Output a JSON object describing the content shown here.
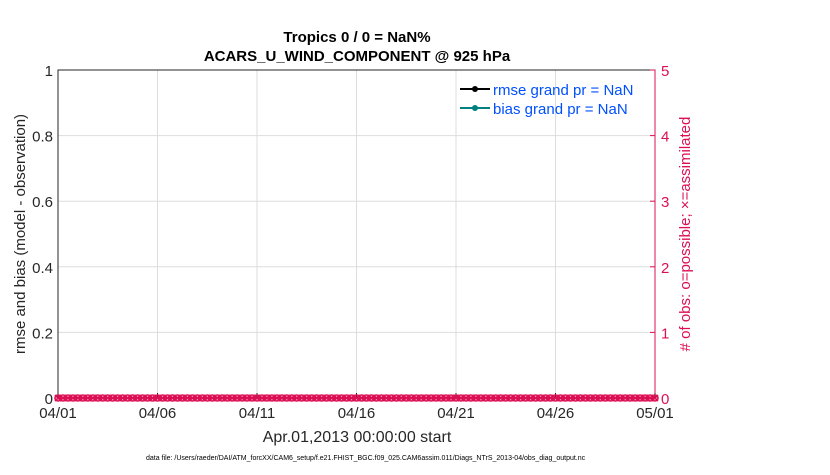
{
  "chart_data": {
    "type": "line",
    "title_line1": "Tropics 0 / 0 = NaN%",
    "title_line2": "ACARS_U_WIND_COMPONENT @ 925 hPa",
    "xlabel": "Apr.01,2013 00:00:00 start",
    "ylabel_left": "rmse and bias (model - observation)",
    "ylabel_right": "# of obs: o=possible; ×=assimilated",
    "x_ticks": [
      "04/01",
      "04/06",
      "04/11",
      "04/16",
      "04/21",
      "04/26",
      "05/01"
    ],
    "y_left_ticks": [
      "0",
      "0.2",
      "0.4",
      "0.6",
      "0.8",
      "1"
    ],
    "y_right_ticks": [
      "0",
      "1",
      "2",
      "3",
      "4",
      "5"
    ],
    "ylim_left": [
      0,
      1
    ],
    "ylim_right": [
      0,
      5
    ],
    "xlim_days": [
      0,
      30
    ],
    "grid": true,
    "legend_placement": "top-right",
    "legend": [
      {
        "label": "rmse grand pr = NaN",
        "color": "#000000"
      },
      {
        "label": "bias grand pr = NaN",
        "color": "#008080"
      }
    ],
    "series": [
      {
        "name": "rmse grand pr = NaN",
        "values": "NaN",
        "color": "#000000"
      },
      {
        "name": "bias grand pr = NaN",
        "values": "NaN",
        "color": "#008080"
      },
      {
        "name": "# obs possible",
        "marker": "o",
        "value": 0,
        "interval_hours": 6,
        "color": "#DC0F55"
      },
      {
        "name": "# obs assimilated",
        "marker": "x",
        "value": 0,
        "interval_hours": 6,
        "color": "#DC0F55"
      }
    ],
    "footnote": "data file: /Users/raeder/DAI/ATM_forcXX/CAM6_setup/f.e21.FHIST_BGC.f09_025.CAM6assim.011/Diags_NTrS_2013-04/obs_diag_output.nc",
    "colors": {
      "left_axis": "#000000",
      "right_axis": "#DC0F55",
      "legend_text": "#0050FF",
      "grid": "#DDDDDD"
    }
  }
}
